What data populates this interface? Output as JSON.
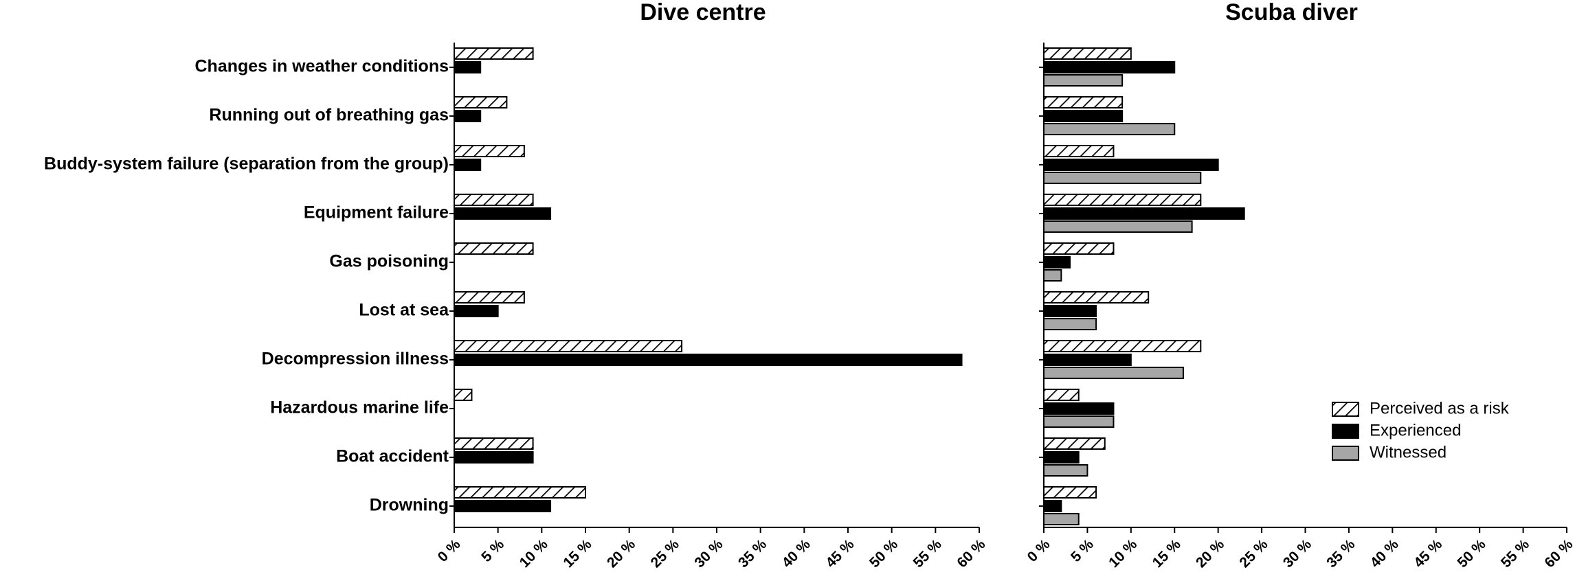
{
  "chart_data": [
    {
      "type": "bar",
      "orientation": "horizontal",
      "title": "Dive centre",
      "categories": [
        "Changes in weather conditions",
        "Running out of breathing gas",
        "Buddy-system failure (separation from the group)",
        "Equipment failure",
        "Gas poisoning",
        "Lost at sea",
        "Decompression illness",
        "Hazardous marine life",
        "Boat accident",
        "Drowning"
      ],
      "series": [
        {
          "color": "#000000",
          "pattern": "hatch",
          "values": [
            9,
            6,
            8,
            9,
            9,
            8,
            26,
            2,
            9,
            15
          ]
        },
        {
          "color": "#000000",
          "values": [
            3,
            3,
            3,
            11,
            null,
            5,
            58,
            null,
            9,
            11
          ]
        }
      ],
      "xlim": [
        0,
        60
      ],
      "xticks": [
        {
          "value": 0,
          "label": "0 %"
        },
        {
          "value": 5,
          "label": "5 %"
        },
        {
          "value": 10,
          "label": "10 %"
        },
        {
          "value": 15,
          "label": "15 %"
        },
        {
          "value": 20,
          "label": "20 %"
        },
        {
          "value": 25,
          "label": "25 %"
        },
        {
          "value": 30,
          "label": "30 %"
        },
        {
          "value": 35,
          "label": "35 %"
        },
        {
          "value": 40,
          "label": "40 %"
        },
        {
          "value": 45,
          "label": "45 %"
        },
        {
          "value": 50,
          "label": "50 %"
        },
        {
          "value": 55,
          "label": "55 %"
        },
        {
          "value": 60,
          "label": "60 %"
        }
      ]
    },
    {
      "type": "bar",
      "orientation": "horizontal",
      "title": "Scuba diver",
      "series": [
        {
          "name": "Perceived as a risk",
          "color": "#000000",
          "pattern": "hatch",
          "values": [
            10,
            9,
            8,
            18,
            8,
            12,
            18,
            4,
            7,
            6
          ]
        },
        {
          "name": "Experienced",
          "color": "#000000",
          "values": [
            15,
            9,
            20,
            23,
            3,
            6,
            10,
            8,
            4,
            2
          ]
        },
        {
          "name": "Witnessed",
          "color": "#a6a6a6",
          "values": [
            9,
            15,
            18,
            17,
            2,
            6,
            16,
            8,
            5,
            4
          ]
        }
      ],
      "xlim": [
        0,
        60
      ],
      "xticks": [
        {
          "value": 0,
          "label": "0 %"
        },
        {
          "value": 5,
          "label": "5 %"
        },
        {
          "value": 10,
          "label": "10 %"
        },
        {
          "value": 15,
          "label": "15 %"
        },
        {
          "value": 20,
          "label": "20 %"
        },
        {
          "value": 25,
          "label": "25 %"
        },
        {
          "value": 30,
          "label": "30 %"
        },
        {
          "value": 35,
          "label": "35 %"
        },
        {
          "value": 40,
          "label": "40 %"
        },
        {
          "value": 45,
          "label": "45 %"
        },
        {
          "value": 50,
          "label": "50 %"
        },
        {
          "value": 55,
          "label": "55 %"
        },
        {
          "value": 60,
          "label": "60 %"
        }
      ],
      "legend": "lower right"
    }
  ]
}
